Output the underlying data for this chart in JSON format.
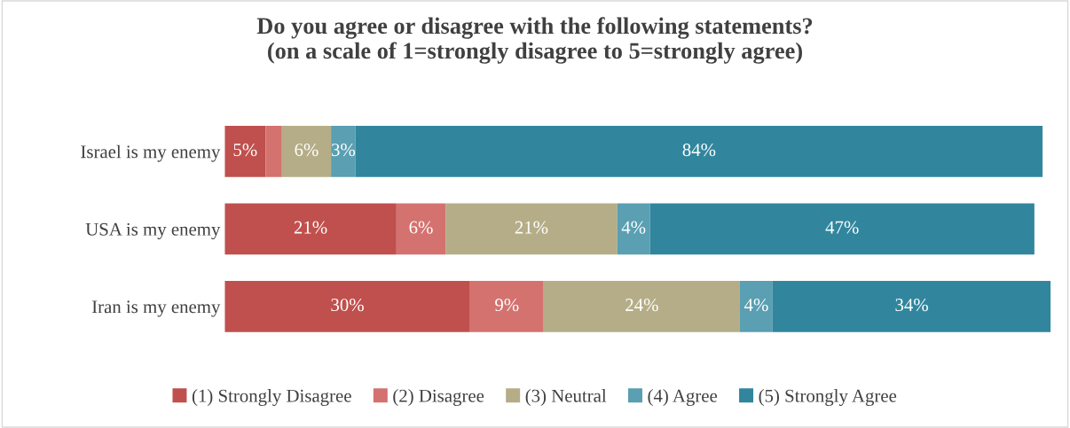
{
  "chart_data": {
    "type": "bar",
    "orientation": "horizontal",
    "stacked": true,
    "title": "Do you agree or disagree with the following statements?\n(on a scale of 1=strongly disagree to 5=strongly agree)",
    "categories": [
      "Israel is my enemy",
      "USA is my enemy",
      "Iran is my enemy"
    ],
    "series": [
      {
        "name": "(1) Strongly Disagree",
        "color": "#c0504d",
        "values": [
          5,
          21,
          30
        ],
        "value_labels": [
          "5%",
          "21%",
          "30%"
        ]
      },
      {
        "name": "(2) Disagree",
        "color": "#d4726f",
        "values": [
          2,
          6,
          9
        ],
        "value_labels": [
          null,
          "6%",
          "9%"
        ]
      },
      {
        "name": "(3) Neutral",
        "color": "#b5ad87",
        "values": [
          6,
          21,
          24
        ],
        "value_labels": [
          "6%",
          "21%",
          "24%"
        ]
      },
      {
        "name": "(4) Agree",
        "color": "#5a9fb2",
        "values": [
          3,
          4,
          4
        ],
        "value_labels": [
          "3%",
          "4%",
          "4%"
        ]
      },
      {
        "name": "(5) Strongly Agree",
        "color": "#31869e",
        "values": [
          84,
          47,
          34
        ],
        "value_labels": [
          "84%",
          "47%",
          "34%"
        ]
      }
    ],
    "legend": "bottom",
    "grid": false,
    "tick_labels": "y"
  }
}
